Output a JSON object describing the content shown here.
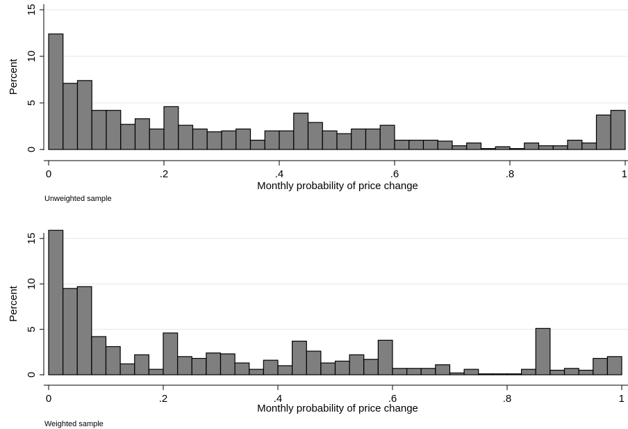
{
  "colors": {
    "bar_fill": "#7f7f7f",
    "bar_stroke": "#000000",
    "grid": "#e6e6e6",
    "axis": "#000000"
  },
  "chart_data": [
    {
      "type": "bar",
      "title": "",
      "note": "Unweighted sample",
      "xlabel": "Monthly probability of price change",
      "ylabel": "Percent",
      "xlim": [
        0,
        1
      ],
      "ylim": [
        0,
        15
      ],
      "bin_width": 0.025,
      "xticks": [
        0,
        0.2,
        0.4,
        0.6,
        0.8,
        1
      ],
      "xtick_labels": [
        "0",
        ".2",
        ".4",
        ".6",
        ".8",
        "1"
      ],
      "yticks": [
        0,
        5,
        10,
        15
      ],
      "ytick_labels": [
        "0",
        "5",
        "10",
        "15"
      ],
      "grid": true,
      "values": [
        12.4,
        7.1,
        7.4,
        4.2,
        4.2,
        2.7,
        3.3,
        2.2,
        4.6,
        2.6,
        2.2,
        1.9,
        2.0,
        2.2,
        1.0,
        2.0,
        2.0,
        3.9,
        2.9,
        2.0,
        1.7,
        2.2,
        2.2,
        2.6,
        1.0,
        1.0,
        1.0,
        0.9,
        0.4,
        0.7,
        0.1,
        0.3,
        0.1,
        0.7,
        0.4,
        0.4,
        1.0,
        0.7,
        3.7,
        4.2
      ]
    },
    {
      "type": "bar",
      "title": "",
      "note": "Weighted sample",
      "xlabel": "Monthly probability of price change",
      "ylabel": "Percent",
      "xlim": [
        0,
        1
      ],
      "ylim": [
        0,
        15
      ],
      "bin_width": 0.025,
      "xticks": [
        0,
        0.2,
        0.4,
        0.6,
        0.8,
        1
      ],
      "xtick_labels": [
        "0",
        ".2",
        ".4",
        ".6",
        ".8",
        "1"
      ],
      "yticks": [
        0,
        5,
        10,
        15
      ],
      "ytick_labels": [
        "0",
        "5",
        "10",
        "15"
      ],
      "grid": true,
      "values": [
        15.9,
        9.5,
        9.7,
        4.2,
        3.1,
        1.2,
        2.2,
        0.6,
        4.6,
        2.0,
        1.8,
        2.4,
        2.3,
        1.3,
        0.6,
        1.6,
        1.0,
        3.7,
        2.6,
        1.3,
        1.5,
        2.2,
        1.7,
        3.8,
        0.7,
        0.7,
        0.7,
        1.1,
        0.2,
        0.6,
        0.1,
        0.1,
        0.1,
        0.6,
        5.1,
        0.5,
        0.7,
        0.5,
        1.8,
        2.0
      ]
    }
  ]
}
